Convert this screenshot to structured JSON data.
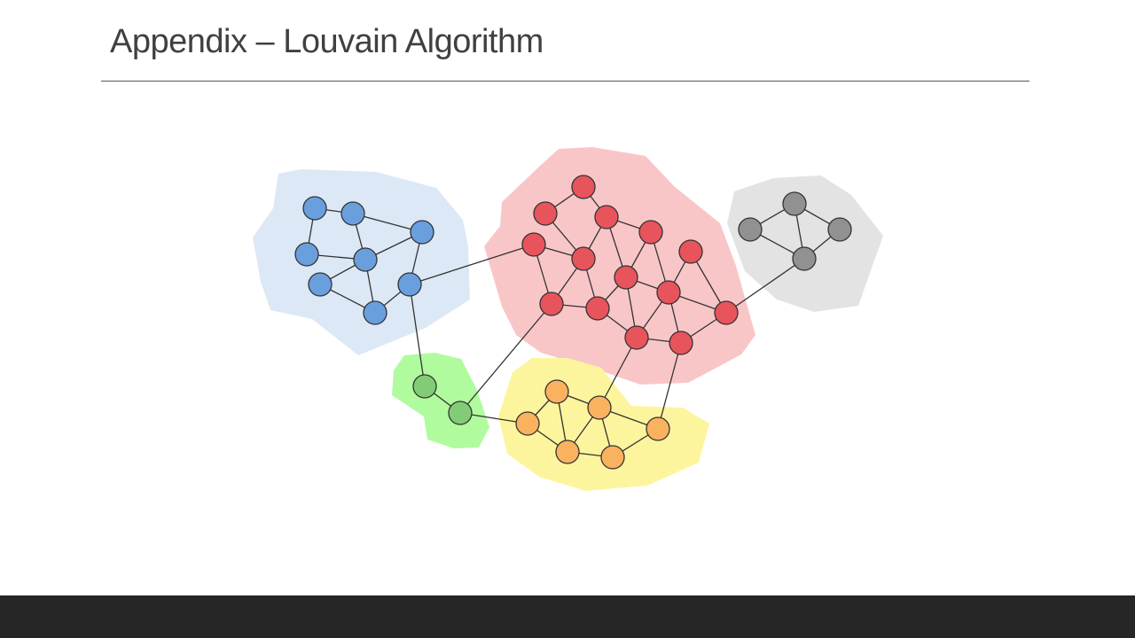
{
  "slide": {
    "title": "Appendix – Louvain Algorithm"
  },
  "diagram": {
    "type": "network-communities",
    "communities": [
      {
        "name": "blue",
        "node_color": "#6a9fde",
        "region_color": "#dde8f6"
      },
      {
        "name": "red",
        "node_color": "#e8545c",
        "region_color": "#f9c6c8"
      },
      {
        "name": "gray",
        "node_color": "#919191",
        "region_color": "#e3e3e3"
      },
      {
        "name": "green",
        "node_color": "#82cc78",
        "region_color": "#b0fb9e"
      },
      {
        "name": "yellow",
        "node_color": "#fbb25e",
        "region_color": "#fdf59e"
      }
    ],
    "node_count": 34,
    "edge_stroke": "#333333",
    "footer_color": "#262626"
  }
}
